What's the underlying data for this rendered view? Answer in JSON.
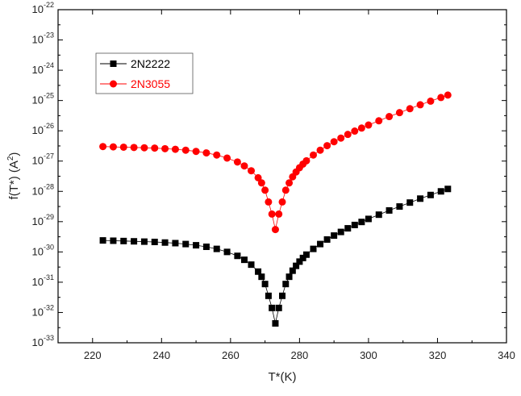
{
  "chart_data": {
    "type": "scatter",
    "title": "",
    "xlabel": "T*(K)",
    "ylabel": {
      "main": "f(T*) (A",
      "sup": "2",
      "close": ")"
    },
    "xlim": [
      210,
      340
    ],
    "ylim_log10": [
      -33,
      -22
    ],
    "y_scale": "log",
    "x_ticks": [
      220,
      240,
      260,
      280,
      300,
      320,
      340
    ],
    "y_ticks": [
      {
        "base": "10",
        "exp": "-22",
        "v": -22
      },
      {
        "base": "10",
        "exp": "-23",
        "v": -23
      },
      {
        "base": "10",
        "exp": "-24",
        "v": -24
      },
      {
        "base": "10",
        "exp": "-25",
        "v": -25
      },
      {
        "base": "10",
        "exp": "-26",
        "v": -26
      },
      {
        "base": "10",
        "exp": "-27",
        "v": -27
      },
      {
        "base": "10",
        "exp": "-28",
        "v": -28
      },
      {
        "base": "10",
        "exp": "-29",
        "v": -29
      },
      {
        "base": "10",
        "exp": "-30",
        "v": -30
      },
      {
        "base": "10",
        "exp": "-31",
        "v": -31
      },
      {
        "base": "10",
        "exp": "-32",
        "v": -32
      },
      {
        "base": "10",
        "exp": "-33",
        "v": -33
      }
    ],
    "legend_position": "top-left",
    "series": [
      {
        "name": "2N2222",
        "color": "#000000",
        "marker": "square",
        "x": [
          223,
          226,
          229,
          232,
          235,
          238,
          241,
          244,
          247,
          250,
          253,
          256,
          259,
          262,
          264,
          266,
          268,
          269,
          270,
          271,
          272,
          273,
          274,
          275,
          276,
          277,
          278,
          279,
          280,
          281,
          282,
          284,
          286,
          288,
          290,
          292,
          294,
          296,
          298,
          300,
          303,
          306,
          309,
          312,
          315,
          318,
          321,
          323
        ],
        "log10y": [
          -29.62,
          -29.63,
          -29.64,
          -29.65,
          -29.66,
          -29.67,
          -29.69,
          -29.71,
          -29.74,
          -29.78,
          -29.83,
          -29.9,
          -30.0,
          -30.13,
          -30.26,
          -30.42,
          -30.65,
          -30.82,
          -31.06,
          -31.45,
          -31.85,
          -32.36,
          -31.85,
          -31.45,
          -31.06,
          -30.82,
          -30.62,
          -30.46,
          -30.32,
          -30.2,
          -30.09,
          -29.9,
          -29.74,
          -29.59,
          -29.46,
          -29.34,
          -29.22,
          -29.11,
          -29.01,
          -28.91,
          -28.77,
          -28.63,
          -28.5,
          -28.37,
          -28.24,
          -28.12,
          -28.0,
          -27.92
        ]
      },
      {
        "name": "2N3055",
        "color": "#ff0000",
        "marker": "circle",
        "x": [
          223,
          226,
          229,
          232,
          235,
          238,
          241,
          244,
          247,
          250,
          253,
          256,
          259,
          262,
          264,
          266,
          268,
          269,
          270,
          271,
          272,
          273,
          274,
          275,
          276,
          277,
          278,
          279,
          280,
          281,
          282,
          284,
          286,
          288,
          290,
          292,
          294,
          296,
          298,
          300,
          303,
          306,
          309,
          312,
          315,
          318,
          321,
          323
        ],
        "log10y": [
          -26.52,
          -26.53,
          -26.54,
          -26.55,
          -26.56,
          -26.57,
          -26.59,
          -26.61,
          -26.64,
          -26.68,
          -26.73,
          -26.8,
          -26.9,
          -27.03,
          -27.16,
          -27.32,
          -27.55,
          -27.72,
          -27.96,
          -28.35,
          -28.75,
          -29.26,
          -28.75,
          -28.35,
          -27.96,
          -27.72,
          -27.52,
          -27.36,
          -27.22,
          -27.1,
          -26.99,
          -26.8,
          -26.64,
          -26.49,
          -26.36,
          -26.24,
          -26.12,
          -26.01,
          -25.91,
          -25.81,
          -25.67,
          -25.53,
          -25.4,
          -25.27,
          -25.14,
          -25.02,
          -24.9,
          -24.82
        ]
      }
    ]
  }
}
